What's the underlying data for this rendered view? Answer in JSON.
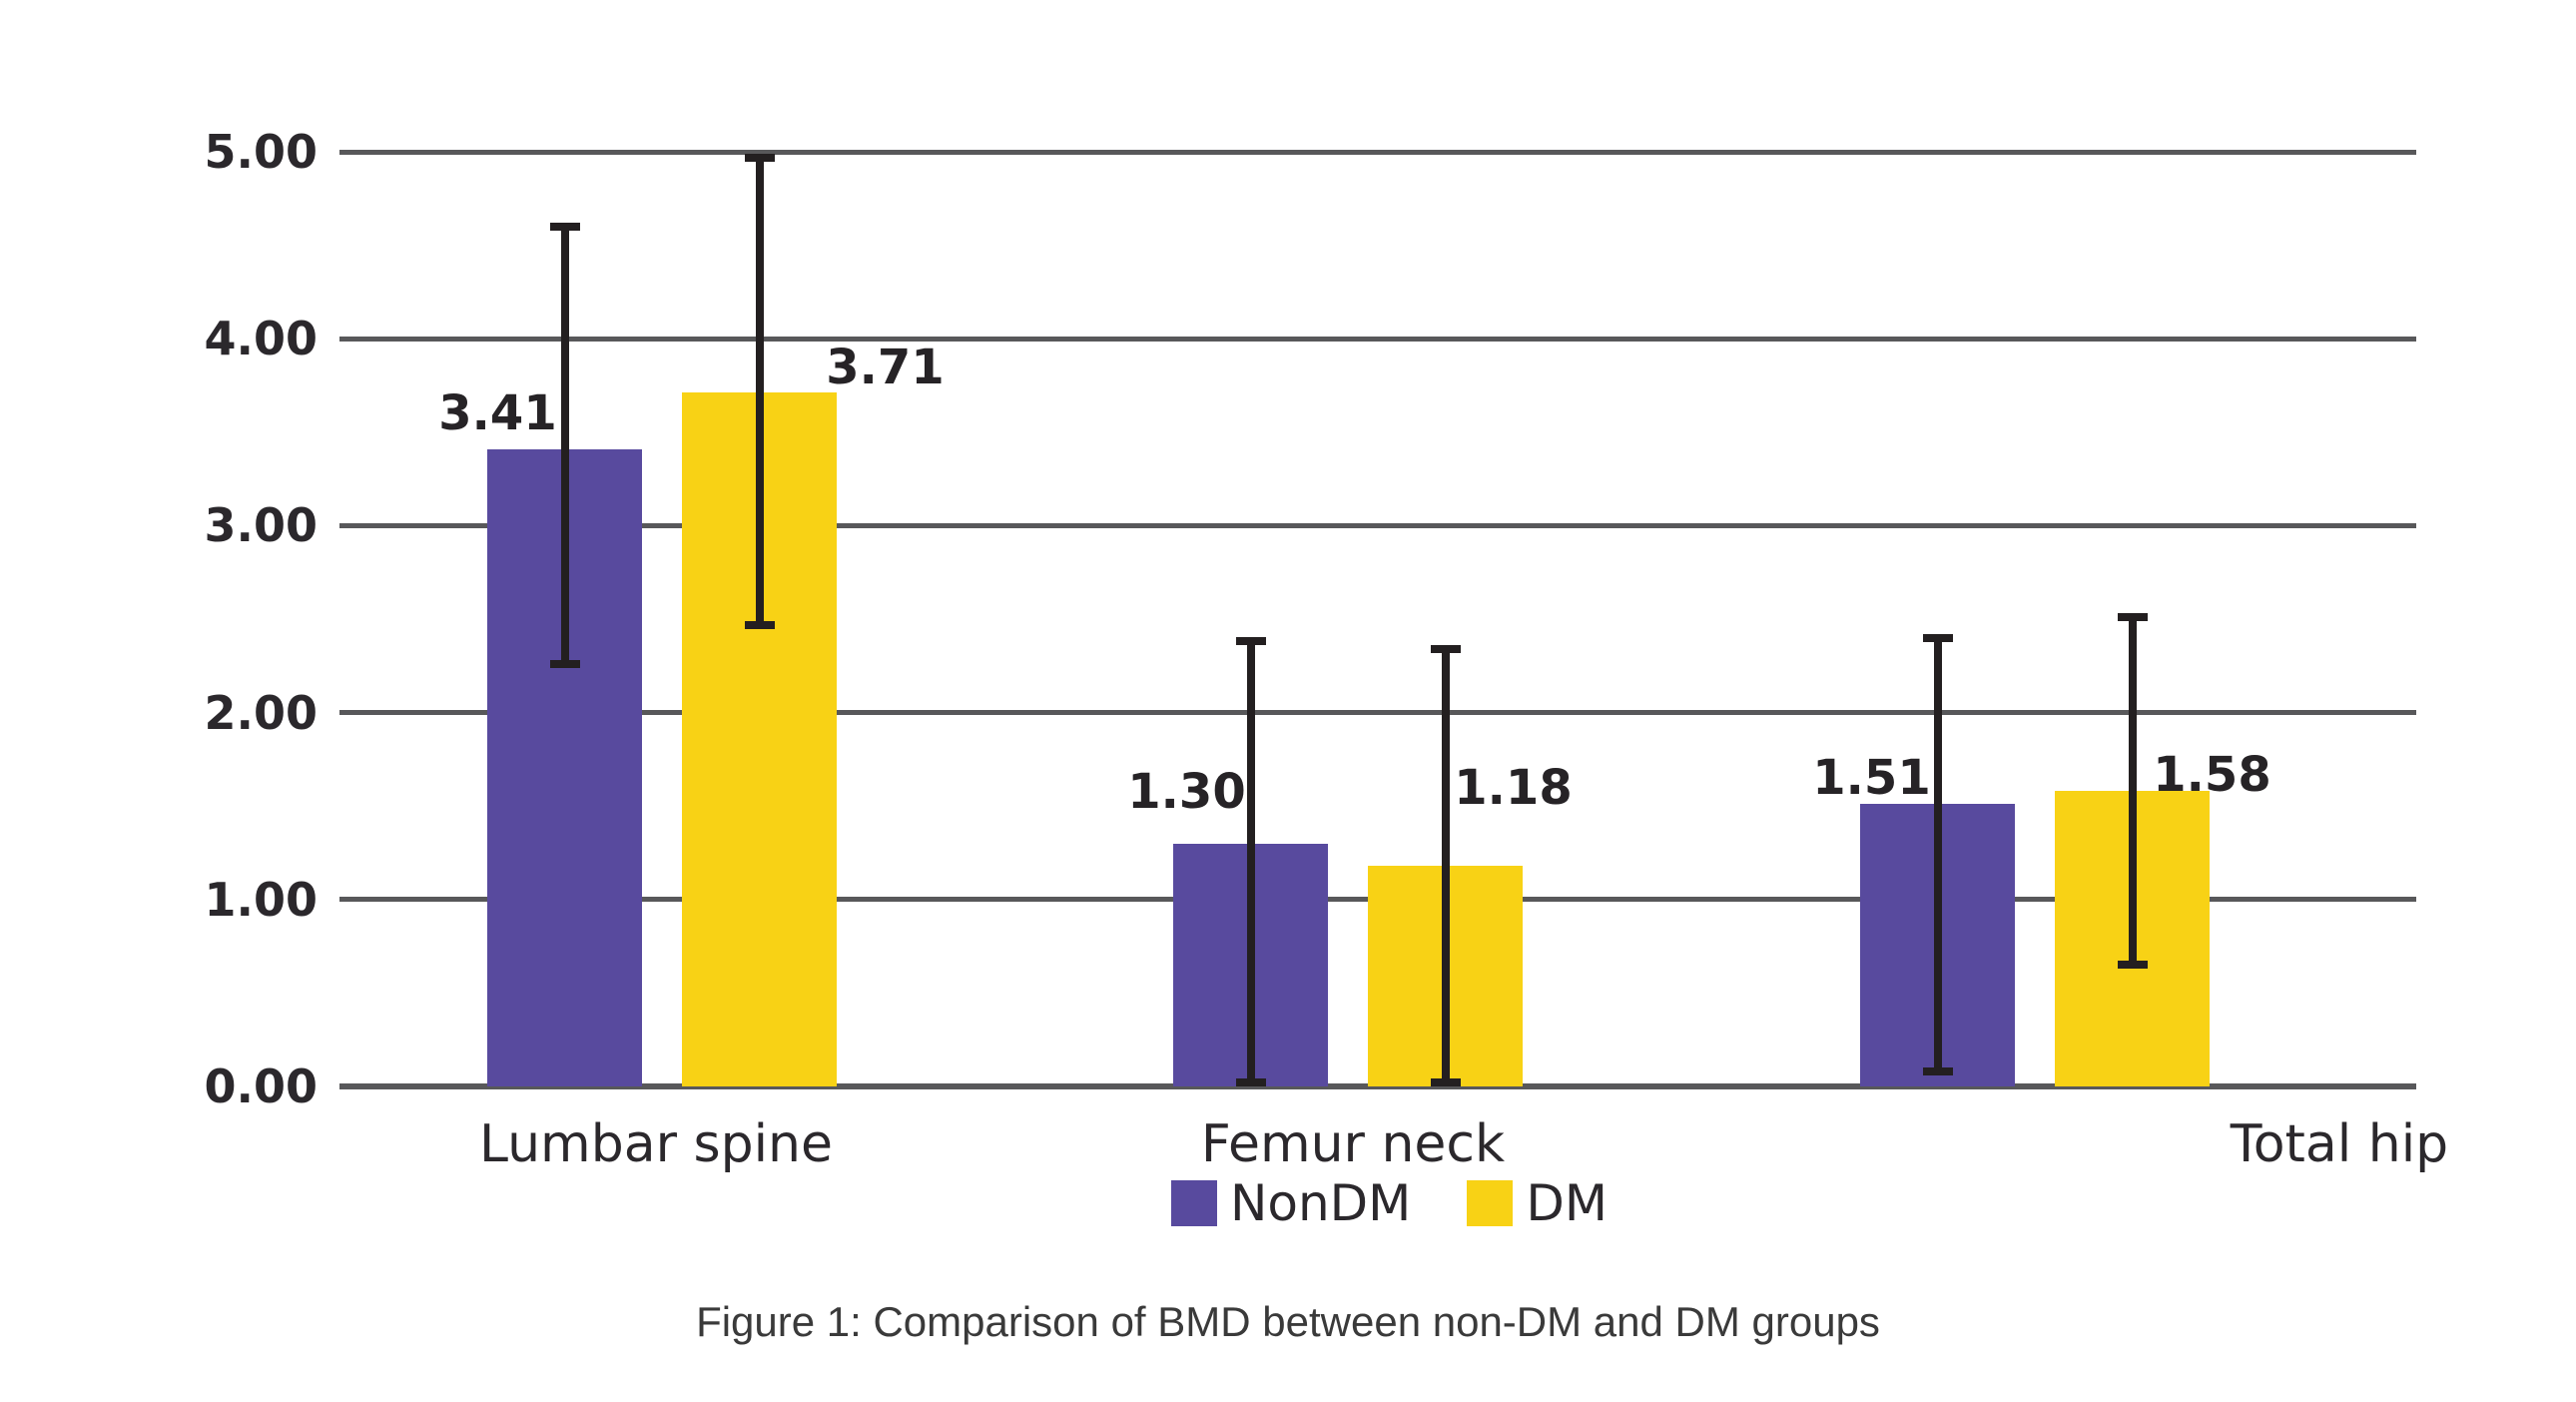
{
  "chart_data": {
    "type": "bar",
    "caption": "Figure 1: Comparison of BMD between non-DM and DM groups",
    "categories": [
      "Lumbar spine",
      "Femur neck",
      "Total hip"
    ],
    "series": [
      {
        "name": "NonDM",
        "color": "#584a9e",
        "values": [
          3.41,
          1.3,
          1.51
        ],
        "value_labels": [
          "3.41",
          "1.30",
          "1.51"
        ],
        "error_low": [
          2.26,
          0.02,
          0.08
        ],
        "error_high": [
          4.6,
          2.38,
          2.4
        ]
      },
      {
        "name": "DM",
        "color": "#f8d215",
        "values": [
          3.71,
          1.18,
          1.58
        ],
        "value_labels": [
          "3.71",
          "1.18",
          "1.58"
        ],
        "error_low": [
          2.47,
          0.02,
          0.65
        ],
        "error_high": [
          4.97,
          2.34,
          2.51
        ]
      }
    ],
    "ylabel": "",
    "xlabel": "",
    "yticks": [
      "5.00",
      "4.00",
      "3.00",
      "2.00",
      "1.00",
      "0.00"
    ],
    "ylim": [
      0,
      5
    ],
    "grid": true,
    "legend_position": "bottom-center",
    "colors": {
      "gridline": "#58585a",
      "error_bar": "#231f20",
      "text": "#2b282c"
    }
  }
}
